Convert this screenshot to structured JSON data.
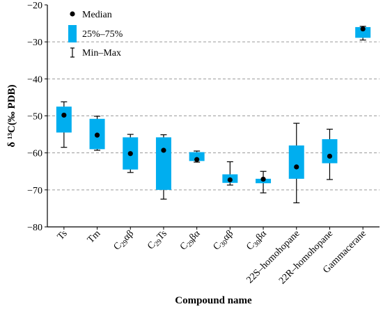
{
  "chart_data": {
    "type": "box",
    "ylabel": "δ ¹³C(‰ PDB)",
    "xlabel": "Compound name",
    "ylim": [
      -80,
      -20
    ],
    "yticks": [
      -80,
      -70,
      -60,
      -50,
      -40,
      -30,
      -20
    ],
    "grid": {
      "horizontal_dashed_at": [
        -70,
        -60,
        -50,
        -40,
        -30
      ]
    },
    "legend": {
      "placement": "top-left",
      "entries": [
        "Median",
        "25%–75%",
        "Min–Max"
      ]
    },
    "colors": {
      "box": "#00AEEF",
      "median": "#000000",
      "whisker": "#000000",
      "grid": "#9a9a9a"
    },
    "categories": [
      {
        "main": "Ts",
        "sub": "",
        "tail": ""
      },
      {
        "main": "Tm",
        "sub": "",
        "tail": ""
      },
      {
        "main": "C",
        "sub": "29",
        "tail": "αβ"
      },
      {
        "main": "C",
        "sub": "29",
        "tail": "Ts"
      },
      {
        "main": "C",
        "sub": "29",
        "tail": "βα"
      },
      {
        "main": "C",
        "sub": "30",
        "tail": "αβ"
      },
      {
        "main": "C",
        "sub": "30",
        "tail": "βα"
      },
      {
        "main": "22S–homohopane",
        "sub": "",
        "tail": ""
      },
      {
        "main": "22R–homohopane",
        "sub": "",
        "tail": ""
      },
      {
        "main": "Gammacerane",
        "sub": "",
        "tail": ""
      }
    ],
    "series": [
      {
        "min": -58.5,
        "q1": -54.5,
        "median": -49.8,
        "q3": -47.5,
        "max": -46.2
      },
      {
        "min": -59.3,
        "q1": -59.0,
        "median": -55.2,
        "q3": -50.8,
        "max": -50.1
      },
      {
        "min": -65.3,
        "q1": -64.5,
        "median": -60.2,
        "q3": -55.8,
        "max": -55.0
      },
      {
        "min": -72.5,
        "q1": -70.0,
        "median": -59.3,
        "q3": -55.8,
        "max": -55.1
      },
      {
        "min": -62.5,
        "q1": -62.2,
        "median": -61.8,
        "q3": -59.8,
        "max": -59.5
      },
      {
        "min": -68.7,
        "q1": -68.1,
        "median": -67.3,
        "q3": -65.8,
        "max": -62.4
      },
      {
        "min": -70.8,
        "q1": -68.2,
        "median": -67.1,
        "q3": -67.0,
        "max": -65.0
      },
      {
        "min": -73.5,
        "q1": -67.0,
        "median": -63.8,
        "q3": -58.0,
        "max": -52.0
      },
      {
        "min": -67.2,
        "q1": -62.8,
        "median": -60.9,
        "q3": -56.3,
        "max": -53.6
      },
      {
        "min": -29.5,
        "q1": -28.9,
        "median": -26.5,
        "q3": -26.0,
        "max": -25.8
      }
    ]
  }
}
